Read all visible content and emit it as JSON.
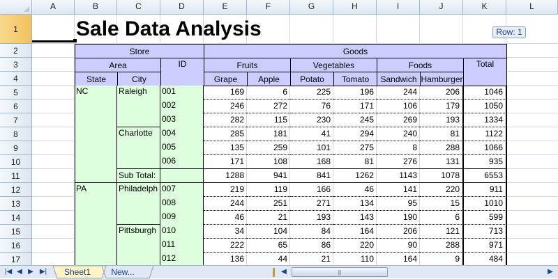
{
  "columns": [
    "A",
    "B",
    "C",
    "D",
    "E",
    "F",
    "G",
    "H",
    "I",
    "J",
    "K",
    "L"
  ],
  "rows": [
    "1",
    "2",
    "3",
    "4",
    "5",
    "6",
    "7",
    "8",
    "9",
    "10",
    "11",
    "12",
    "13",
    "14",
    "15",
    "16",
    "17"
  ],
  "title": "Sale Data Analysis",
  "row_indicator": "Row: 1",
  "headers": {
    "store": "Store",
    "goods": "Goods",
    "area": "Area",
    "id": "ID",
    "fruits": "Fruits",
    "vegetables": "Vegetables",
    "foods": "Foods",
    "total": "Total",
    "state": "State",
    "city": "City",
    "grape": "Grape",
    "apple": "Apple",
    "potato": "Potato",
    "tomato": "Tomato",
    "sandwich": "Sandwich",
    "hamburger": "Hamburger"
  },
  "states": [
    "NC",
    "PA"
  ],
  "cities": [
    "Raleigh",
    "Charlotte",
    "Philadelph",
    "Pittsburgh"
  ],
  "subtotal_label": "Sub Total:",
  "data_rows": [
    {
      "id": "001",
      "values": [
        "169",
        "6",
        "225",
        "196",
        "244",
        "206",
        "1046"
      ]
    },
    {
      "id": "002",
      "values": [
        "246",
        "272",
        "76",
        "171",
        "106",
        "179",
        "1050"
      ]
    },
    {
      "id": "003",
      "values": [
        "282",
        "115",
        "230",
        "245",
        "269",
        "193",
        "1334"
      ]
    },
    {
      "id": "004",
      "values": [
        "285",
        "181",
        "41",
        "294",
        "240",
        "81",
        "1122"
      ]
    },
    {
      "id": "005",
      "values": [
        "135",
        "259",
        "101",
        "275",
        "8",
        "288",
        "1066"
      ]
    },
    {
      "id": "006",
      "values": [
        "171",
        "108",
        "168",
        "81",
        "276",
        "131",
        "935"
      ]
    },
    {
      "id": "",
      "values": [
        "1288",
        "941",
        "841",
        "1262",
        "1143",
        "1078",
        "6553"
      ]
    },
    {
      "id": "007",
      "values": [
        "219",
        "119",
        "166",
        "46",
        "141",
        "220",
        "911"
      ]
    },
    {
      "id": "008",
      "values": [
        "244",
        "251",
        "271",
        "134",
        "95",
        "15",
        "1010"
      ]
    },
    {
      "id": "009",
      "values": [
        "46",
        "21",
        "193",
        "143",
        "190",
        "6",
        "599"
      ]
    },
    {
      "id": "010",
      "values": [
        "34",
        "104",
        "84",
        "164",
        "206",
        "121",
        "713"
      ]
    },
    {
      "id": "011",
      "values": [
        "222",
        "65",
        "86",
        "220",
        "90",
        "288",
        "971"
      ]
    },
    {
      "id": "012",
      "values": [
        "136",
        "44",
        "21",
        "110",
        "164",
        "9",
        "484"
      ]
    }
  ],
  "tabs": [
    "Sheet1",
    "New..."
  ],
  "icons": {
    "first": "first-sheet-icon",
    "prev": "prev-sheet-icon",
    "next": "next-sheet-icon",
    "last": "last-sheet-icon"
  },
  "nav_glyphs": [
    "|◀",
    "◀",
    "▶",
    "▶|"
  ],
  "colors": {
    "header_bg": "#ccccff",
    "area_bg": "#ddffdd",
    "grid": "#d0d7e5",
    "chrome": "#dfe8f4"
  }
}
